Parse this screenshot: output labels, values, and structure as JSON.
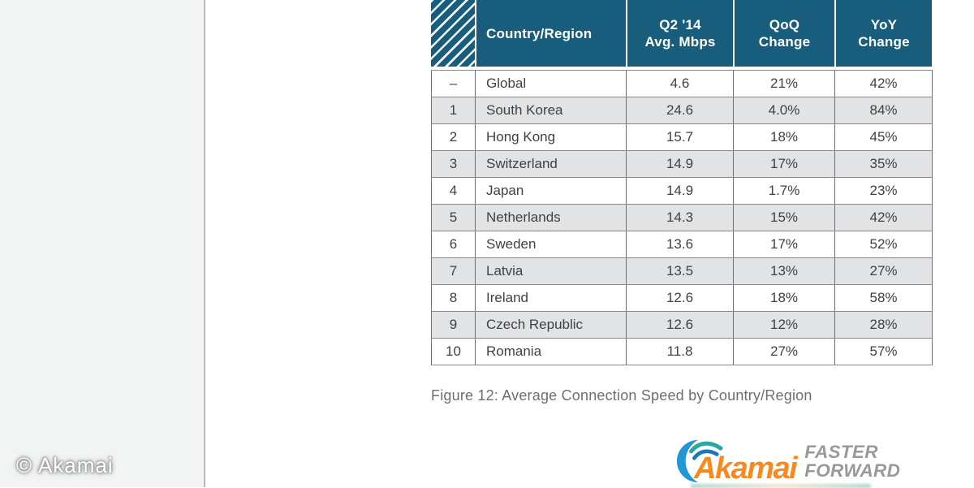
{
  "watermark": {
    "label": "© Akamai"
  },
  "page": {
    "caption": "Figure 12: Average Connection Speed by Country/Region"
  },
  "table": {
    "header": {
      "country": "Country/Region",
      "mbps_line1": "Q2 '14",
      "mbps_line2": "Avg. Mbps",
      "qoq_line1": "QoQ",
      "qoq_line2": "Change",
      "yoy_line1": "YoY",
      "yoy_line2": "Change"
    },
    "rows": [
      {
        "rank": "–",
        "country": "Global",
        "mbps": "4.6",
        "qoq": "21%",
        "yoy": "42%"
      },
      {
        "rank": "1",
        "country": "South Korea",
        "mbps": "24.6",
        "qoq": "4.0%",
        "yoy": "84%"
      },
      {
        "rank": "2",
        "country": "Hong Kong",
        "mbps": "15.7",
        "qoq": "18%",
        "yoy": "45%"
      },
      {
        "rank": "3",
        "country": "Switzerland",
        "mbps": "14.9",
        "qoq": "17%",
        "yoy": "35%"
      },
      {
        "rank": "4",
        "country": "Japan",
        "mbps": "14.9",
        "qoq": "1.7%",
        "yoy": "23%"
      },
      {
        "rank": "5",
        "country": "Netherlands",
        "mbps": "14.3",
        "qoq": "15%",
        "yoy": "42%"
      },
      {
        "rank": "6",
        "country": "Sweden",
        "mbps": "13.6",
        "qoq": "17%",
        "yoy": "52%"
      },
      {
        "rank": "7",
        "country": "Latvia",
        "mbps": "13.5",
        "qoq": "13%",
        "yoy": "27%"
      },
      {
        "rank": "8",
        "country": "Ireland",
        "mbps": "12.6",
        "qoq": "18%",
        "yoy": "58%"
      },
      {
        "rank": "9",
        "country": "Czech Republic",
        "mbps": "12.6",
        "qoq": "12%",
        "yoy": "28%"
      },
      {
        "rank": "10",
        "country": "Romania",
        "mbps": "11.8",
        "qoq": "27%",
        "yoy": "57%"
      }
    ]
  },
  "logo": {
    "brand": "Akamai",
    "tagline": "FASTER FORWARD"
  },
  "colors": {
    "header_teal": "#185D7B",
    "row_alt_gray": "#E2E3E4",
    "table_border": "#6F7073",
    "brand_orange": "#F6891F",
    "tagline_gray": "#97999C",
    "logo_blue": "#2397D4",
    "logo_teal": "#2AA79E",
    "logo_dark_blue": "#1878BE"
  }
}
